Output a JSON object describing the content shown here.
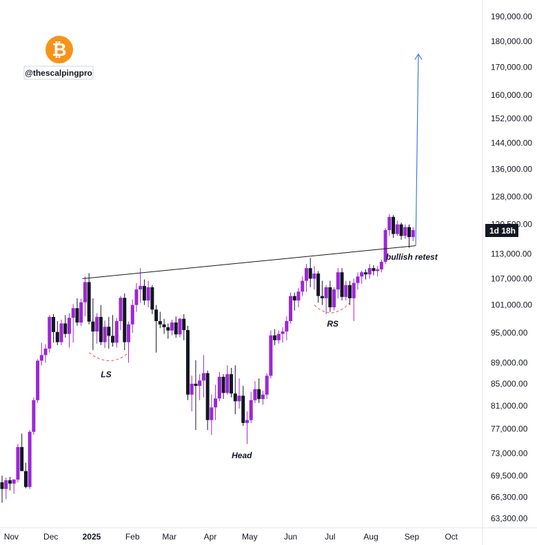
{
  "watermark": {
    "logo_icon": "bitcoin-icon",
    "logo_glyph": "₿",
    "logo_color": "#f7931a",
    "handle": "@thescalpingpro"
  },
  "price_badge": {
    "text": "1d 18h",
    "bg": "#131722"
  },
  "colors": {
    "up": "#9c27d6",
    "down": "#131722",
    "neckline": "#131722",
    "projection": "#3d7be3",
    "shoulder_curve": "#ef5350"
  },
  "chart_data": {
    "type": "candlestick",
    "title": "",
    "xlabel": "",
    "ylabel": "",
    "interval": "3 days",
    "y_axis": {
      "side": "right",
      "scale": "log",
      "range": [
        62000,
        197000
      ],
      "ticks": [
        190000,
        180000,
        170000,
        160000,
        152000,
        144000,
        136000,
        128000,
        120500,
        113000,
        107000,
        101000,
        95000,
        89000,
        85000,
        81000,
        77000,
        73000,
        69500,
        66300,
        63300
      ],
      "tick_labels": [
        "190,000.00",
        "180,000.00",
        "170,000.00",
        "160,000.00",
        "152,000.00",
        "144,000.00",
        "136,000.00",
        "128,000.00",
        "120,500.00",
        "113,000.00",
        "107,000.00",
        "101,000.00",
        "95,000.00",
        "89,000.00",
        "85,000.00",
        "81,000.00",
        "77,000.00",
        "73,000.00",
        "69,500.00",
        "66,300.00",
        "63,300.00"
      ]
    },
    "x_axis": {
      "range": [
        "2024-10-25",
        "2025-10-20"
      ],
      "ticks": [
        {
          "date": "2024-11-01",
          "label": "Nov",
          "bold": false
        },
        {
          "date": "2024-12-01",
          "label": "Dec",
          "bold": false
        },
        {
          "date": "2025-01-01",
          "label": "2025",
          "bold": true
        },
        {
          "date": "2025-02-01",
          "label": "Feb",
          "bold": false
        },
        {
          "date": "2025-03-01",
          "label": "Mar",
          "bold": false
        },
        {
          "date": "2025-04-01",
          "label": "Apr",
          "bold": false
        },
        {
          "date": "2025-05-01",
          "label": "May",
          "bold": false
        },
        {
          "date": "2025-06-01",
          "label": "Jun",
          "bold": false
        },
        {
          "date": "2025-07-01",
          "label": "Jul",
          "bold": false
        },
        {
          "date": "2025-08-01",
          "label": "Aug",
          "bold": false
        },
        {
          "date": "2025-09-01",
          "label": "Sep",
          "bold": false
        },
        {
          "date": "2025-10-01",
          "label": "Oct",
          "bold": false
        }
      ]
    },
    "ohlc": [
      {
        "date": "2024-10-25",
        "open": 68500,
        "high": 69500,
        "low": 65500,
        "close": 67500
      },
      {
        "date": "2024-10-28",
        "open": 67500,
        "high": 69200,
        "low": 66000,
        "close": 68800
      },
      {
        "date": "2024-10-31",
        "open": 68800,
        "high": 69300,
        "low": 67300,
        "close": 68300
      },
      {
        "date": "2024-11-03",
        "open": 68300,
        "high": 69000,
        "low": 66800,
        "close": 68900
      },
      {
        "date": "2024-11-06",
        "open": 68900,
        "high": 74500,
        "low": 68500,
        "close": 74000
      },
      {
        "date": "2024-11-09",
        "open": 74000,
        "high": 76200,
        "low": 70200,
        "close": 70200
      },
      {
        "date": "2024-11-12",
        "open": 70200,
        "high": 71500,
        "low": 67600,
        "close": 67800
      },
      {
        "date": "2024-11-15",
        "open": 67800,
        "high": 76800,
        "low": 67500,
        "close": 76500
      },
      {
        "date": "2024-11-18",
        "open": 76500,
        "high": 82500,
        "low": 76000,
        "close": 82000
      },
      {
        "date": "2024-11-21",
        "open": 82000,
        "high": 89700,
        "low": 81500,
        "close": 89400
      },
      {
        "date": "2024-11-24",
        "open": 89400,
        "high": 93000,
        "low": 88500,
        "close": 90500
      },
      {
        "date": "2024-11-27",
        "open": 90500,
        "high": 92700,
        "low": 89000,
        "close": 91800
      },
      {
        "date": "2024-11-30",
        "open": 91800,
        "high": 98800,
        "low": 91000,
        "close": 98400
      },
      {
        "date": "2024-12-03",
        "open": 98400,
        "high": 99000,
        "low": 93000,
        "close": 95200
      },
      {
        "date": "2024-12-06",
        "open": 95200,
        "high": 97500,
        "low": 92500,
        "close": 93100
      },
      {
        "date": "2024-12-09",
        "open": 93100,
        "high": 97800,
        "low": 92500,
        "close": 97000
      },
      {
        "date": "2024-12-12",
        "open": 97000,
        "high": 98800,
        "low": 94000,
        "close": 94800
      },
      {
        "date": "2024-12-15",
        "open": 94800,
        "high": 99200,
        "low": 92000,
        "close": 98200
      },
      {
        "date": "2024-12-18",
        "open": 98200,
        "high": 101200,
        "low": 93000,
        "close": 100300
      },
      {
        "date": "2024-12-21",
        "open": 100300,
        "high": 102500,
        "low": 96500,
        "close": 97200
      },
      {
        "date": "2024-12-24",
        "open": 97200,
        "high": 102400,
        "low": 96500,
        "close": 101600
      },
      {
        "date": "2024-12-27",
        "open": 101600,
        "high": 107500,
        "low": 98500,
        "close": 106200
      },
      {
        "date": "2024-12-30",
        "open": 106200,
        "high": 108300,
        "low": 96800,
        "close": 97400
      },
      {
        "date": "2025-01-02",
        "open": 97400,
        "high": 102500,
        "low": 91500,
        "close": 95300
      },
      {
        "date": "2025-01-05",
        "open": 95300,
        "high": 99200,
        "low": 92800,
        "close": 98400
      },
      {
        "date": "2025-01-08",
        "open": 98400,
        "high": 101000,
        "low": 92500,
        "close": 93100
      },
      {
        "date": "2025-01-11",
        "open": 93100,
        "high": 97600,
        "low": 91900,
        "close": 96300
      },
      {
        "date": "2025-01-14",
        "open": 96300,
        "high": 98400,
        "low": 91800,
        "close": 94400
      },
      {
        "date": "2025-01-17",
        "open": 94400,
        "high": 98800,
        "low": 92200,
        "close": 93000
      },
      {
        "date": "2025-01-20",
        "open": 93000,
        "high": 98200,
        "low": 92000,
        "close": 97500
      },
      {
        "date": "2025-01-23",
        "open": 97500,
        "high": 103000,
        "low": 95600,
        "close": 102600
      },
      {
        "date": "2025-01-26",
        "open": 102600,
        "high": 103600,
        "low": 91500,
        "close": 93100
      },
      {
        "date": "2025-01-29",
        "open": 93100,
        "high": 97400,
        "low": 89000,
        "close": 96800
      },
      {
        "date": "2025-02-01",
        "open": 96800,
        "high": 102200,
        "low": 95000,
        "close": 101000
      },
      {
        "date": "2025-02-04",
        "open": 101000,
        "high": 106000,
        "low": 99500,
        "close": 104500
      },
      {
        "date": "2025-02-07",
        "open": 104500,
        "high": 109500,
        "low": 101500,
        "close": 105300
      },
      {
        "date": "2025-02-10",
        "open": 105300,
        "high": 106800,
        "low": 101000,
        "close": 102000
      },
      {
        "date": "2025-02-13",
        "open": 102000,
        "high": 106500,
        "low": 100500,
        "close": 105000
      },
      {
        "date": "2025-02-16",
        "open": 105000,
        "high": 105500,
        "low": 99000,
        "close": 100000
      },
      {
        "date": "2025-02-19",
        "open": 100000,
        "high": 101000,
        "low": 91000,
        "close": 97500
      },
      {
        "date": "2025-02-22",
        "open": 97500,
        "high": 99500,
        "low": 96000,
        "close": 96800
      },
      {
        "date": "2025-02-25",
        "open": 96800,
        "high": 98000,
        "low": 94800,
        "close": 96200
      },
      {
        "date": "2025-02-28",
        "open": 96200,
        "high": 97000,
        "low": 93800,
        "close": 95500
      },
      {
        "date": "2025-03-03",
        "open": 95500,
        "high": 97800,
        "low": 94500,
        "close": 97200
      },
      {
        "date": "2025-03-06",
        "open": 97200,
        "high": 98500,
        "low": 94000,
        "close": 94700
      },
      {
        "date": "2025-03-09",
        "open": 94700,
        "high": 98200,
        "low": 94100,
        "close": 98000
      },
      {
        "date": "2025-03-12",
        "open": 98000,
        "high": 99000,
        "low": 93500,
        "close": 95600
      },
      {
        "date": "2025-03-15",
        "open": 95600,
        "high": 96500,
        "low": 82000,
        "close": 83000
      },
      {
        "date": "2025-03-18",
        "open": 83000,
        "high": 86500,
        "low": 80000,
        "close": 85000
      },
      {
        "date": "2025-03-21",
        "open": 85000,
        "high": 89500,
        "low": 76800,
        "close": 84600
      },
      {
        "date": "2025-03-24",
        "open": 84600,
        "high": 86800,
        "low": 82000,
        "close": 85600
      },
      {
        "date": "2025-03-27",
        "open": 85600,
        "high": 90500,
        "low": 82500,
        "close": 87000
      },
      {
        "date": "2025-03-30",
        "open": 87000,
        "high": 87500,
        "low": 76800,
        "close": 78500
      },
      {
        "date": "2025-04-02",
        "open": 78500,
        "high": 83000,
        "low": 76000,
        "close": 80700
      },
      {
        "date": "2025-04-05",
        "open": 80700,
        "high": 84800,
        "low": 78500,
        "close": 82300
      },
      {
        "date": "2025-04-08",
        "open": 82300,
        "high": 87200,
        "low": 81800,
        "close": 86300
      },
      {
        "date": "2025-04-11",
        "open": 86300,
        "high": 86800,
        "low": 82200,
        "close": 83300
      },
      {
        "date": "2025-04-14",
        "open": 83300,
        "high": 88500,
        "low": 83000,
        "close": 86800
      },
      {
        "date": "2025-04-17",
        "open": 86800,
        "high": 88000,
        "low": 82500,
        "close": 83200
      },
      {
        "date": "2025-04-20",
        "open": 83200,
        "high": 88500,
        "low": 79500,
        "close": 81800
      },
      {
        "date": "2025-04-23",
        "open": 81800,
        "high": 86000,
        "low": 80500,
        "close": 82800
      },
      {
        "date": "2025-04-26",
        "open": 82800,
        "high": 84600,
        "low": 77500,
        "close": 78000
      },
      {
        "date": "2025-04-29",
        "open": 78000,
        "high": 80000,
        "low": 74500,
        "close": 78500
      },
      {
        "date": "2025-05-02",
        "open": 78500,
        "high": 83500,
        "low": 78000,
        "close": 82000
      },
      {
        "date": "2025-05-05",
        "open": 82000,
        "high": 85500,
        "low": 81500,
        "close": 84000
      },
      {
        "date": "2025-05-08",
        "open": 84000,
        "high": 86000,
        "low": 81500,
        "close": 82200
      },
      {
        "date": "2025-05-11",
        "open": 82200,
        "high": 83700,
        "low": 81200,
        "close": 83000
      },
      {
        "date": "2025-05-14",
        "open": 83000,
        "high": 87000,
        "low": 82200,
        "close": 86500
      },
      {
        "date": "2025-05-17",
        "open": 86500,
        "high": 95500,
        "low": 86000,
        "close": 94500
      },
      {
        "date": "2025-05-20",
        "open": 94500,
        "high": 95800,
        "low": 92500,
        "close": 93500
      },
      {
        "date": "2025-05-23",
        "open": 93500,
        "high": 95500,
        "low": 92800,
        "close": 94800
      },
      {
        "date": "2025-05-26",
        "open": 94800,
        "high": 96200,
        "low": 93000,
        "close": 95300
      },
      {
        "date": "2025-05-29",
        "open": 95300,
        "high": 98500,
        "low": 93500,
        "close": 97500
      },
      {
        "date": "2025-06-01",
        "open": 97500,
        "high": 103800,
        "low": 97000,
        "close": 103000
      },
      {
        "date": "2025-06-04",
        "open": 103000,
        "high": 103800,
        "low": 99800,
        "close": 102000
      },
      {
        "date": "2025-06-07",
        "open": 102000,
        "high": 104800,
        "low": 100500,
        "close": 104000
      },
      {
        "date": "2025-06-10",
        "open": 104000,
        "high": 107500,
        "low": 103000,
        "close": 106500
      },
      {
        "date": "2025-06-13",
        "open": 106500,
        "high": 110500,
        "low": 104000,
        "close": 109500
      },
      {
        "date": "2025-06-16",
        "open": 109500,
        "high": 112000,
        "low": 105000,
        "close": 107000
      },
      {
        "date": "2025-06-19",
        "open": 107000,
        "high": 110000,
        "low": 104500,
        "close": 108200
      },
      {
        "date": "2025-06-22",
        "open": 108200,
        "high": 108800,
        "low": 101500,
        "close": 103000
      },
      {
        "date": "2025-06-25",
        "open": 103000,
        "high": 106500,
        "low": 101000,
        "close": 102500
      },
      {
        "date": "2025-06-28",
        "open": 102500,
        "high": 105500,
        "low": 99000,
        "close": 105000
      },
      {
        "date": "2025-07-01",
        "open": 105000,
        "high": 106500,
        "low": 99500,
        "close": 100500
      },
      {
        "date": "2025-07-04",
        "open": 100500,
        "high": 105000,
        "low": 99800,
        "close": 104500
      },
      {
        "date": "2025-07-07",
        "open": 104500,
        "high": 109500,
        "low": 102500,
        "close": 108500
      },
      {
        "date": "2025-07-10",
        "open": 108500,
        "high": 109500,
        "low": 102000,
        "close": 102800
      },
      {
        "date": "2025-07-13",
        "open": 102800,
        "high": 106500,
        "low": 102000,
        "close": 105500
      },
      {
        "date": "2025-07-16",
        "open": 105500,
        "high": 106500,
        "low": 101000,
        "close": 102500
      },
      {
        "date": "2025-07-19",
        "open": 102500,
        "high": 107000,
        "low": 97500,
        "close": 106000
      },
      {
        "date": "2025-07-22",
        "open": 106000,
        "high": 108500,
        "low": 104500,
        "close": 107500
      },
      {
        "date": "2025-07-25",
        "open": 107500,
        "high": 108900,
        "low": 105800,
        "close": 108500
      },
      {
        "date": "2025-07-28",
        "open": 108500,
        "high": 109200,
        "low": 106800,
        "close": 108000
      },
      {
        "date": "2025-07-31",
        "open": 108000,
        "high": 110500,
        "low": 107000,
        "close": 109500
      },
      {
        "date": "2025-08-03",
        "open": 109500,
        "high": 110200,
        "low": 107800,
        "close": 108800
      },
      {
        "date": "2025-08-06",
        "open": 108800,
        "high": 110000,
        "low": 107500,
        "close": 109200
      },
      {
        "date": "2025-08-09",
        "open": 109200,
        "high": 111500,
        "low": 108500,
        "close": 111000
      },
      {
        "date": "2025-08-12",
        "open": 111000,
        "high": 119500,
        "low": 110500,
        "close": 119000
      },
      {
        "date": "2025-08-15",
        "open": 119000,
        "high": 123200,
        "low": 117500,
        "close": 122500
      },
      {
        "date": "2025-08-18",
        "open": 122500,
        "high": 123000,
        "low": 117000,
        "close": 118000
      },
      {
        "date": "2025-08-21",
        "open": 118000,
        "high": 121500,
        "low": 117500,
        "close": 120500
      },
      {
        "date": "2025-08-24",
        "open": 120500,
        "high": 121000,
        "low": 116500,
        "close": 117500
      },
      {
        "date": "2025-08-27",
        "open": 117500,
        "high": 120500,
        "low": 116800,
        "close": 119800
      },
      {
        "date": "2025-08-30",
        "open": 119800,
        "high": 120500,
        "low": 114500,
        "close": 117200
      },
      {
        "date": "2025-09-02",
        "open": 117200,
        "high": 119800,
        "low": 116200,
        "close": 119000
      }
    ],
    "neckline": {
      "start": {
        "date": "2024-12-25",
        "price": 107000
      },
      "end": {
        "date": "2025-09-04",
        "price": 115000
      }
    },
    "projection_arrow": {
      "start": {
        "date": "2025-09-04",
        "price": 115000
      },
      "end": {
        "date": "2025-09-06",
        "price": 175000
      }
    },
    "shoulder_arcs": [
      {
        "label": "LS",
        "from": {
          "date": "2024-12-30",
          "price": 91000
        },
        "bottom": {
          "date": "2025-01-15",
          "price": 89400
        },
        "to": {
          "date": "2025-01-29",
          "price": 91000
        }
      },
      {
        "label": "RS",
        "from": {
          "date": "2025-06-19",
          "price": 101000
        },
        "bottom": {
          "date": "2025-07-02",
          "price": 99300
        },
        "to": {
          "date": "2025-07-16",
          "price": 101500
        }
      }
    ],
    "annotations": [
      {
        "text": "LS",
        "date": "2025-01-12",
        "price": 86200
      },
      {
        "text": "Head",
        "date": "2025-04-25",
        "price": 72200
      },
      {
        "text": "RS",
        "date": "2025-07-03",
        "price": 96300
      },
      {
        "text": "bullish retest",
        "date": "2025-09-01",
        "price": 111500
      }
    ],
    "grid": false,
    "legend": "none"
  }
}
